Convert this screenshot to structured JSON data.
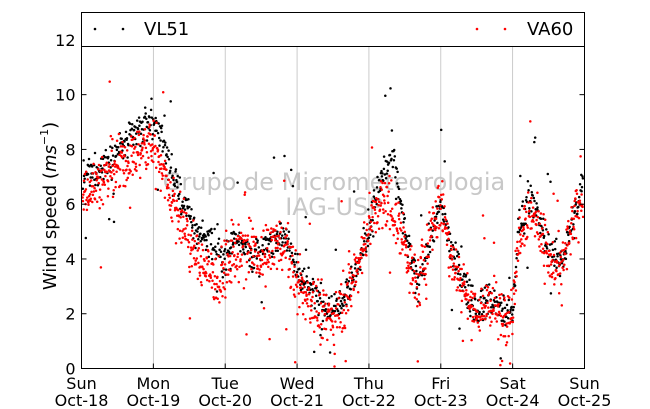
{
  "chart_data": {
    "type": "scatter",
    "title": "",
    "xlabel": "",
    "ylabel": "Wind speed (",
    "ylabel_unit": "ms",
    "ylabel_unit_exp": "−1",
    "ylabel_close": ")",
    "ylim": [
      0,
      13
    ],
    "yticks": [
      0,
      2,
      4,
      6,
      8,
      10,
      12
    ],
    "xlim": [
      "2015-10-18T00:00",
      "2015-10-25T00:00"
    ],
    "xticks": [
      {
        "day": "Sun",
        "date": "Oct-18"
      },
      {
        "day": "Mon",
        "date": "Oct-19"
      },
      {
        "day": "Tue",
        "date": "Oct-20"
      },
      {
        "day": "Wed",
        "date": "Oct-21"
      },
      {
        "day": "Thu",
        "date": "Oct-22"
      },
      {
        "day": "Fri",
        "date": "Oct-23"
      },
      {
        "day": "Sat",
        "date": "Oct-24"
      },
      {
        "day": "Sun",
        "date": "Oct-25"
      }
    ],
    "grid": "vertical at day boundaries",
    "legend_placement": "top, full width",
    "watermark": [
      "Grupo de Micrometeorologia",
      "IAG-USP"
    ],
    "series": [
      {
        "name": "VL51",
        "color": "#000000",
        "marker": "dot",
        "trend_by_hour": [
          [
            0,
            6.9
          ],
          [
            6,
            7.3
          ],
          [
            12,
            7.9
          ],
          [
            18,
            8.6
          ],
          [
            22,
            9.0
          ],
          [
            26,
            8.8
          ],
          [
            30,
            7.2
          ],
          [
            34,
            6.2
          ],
          [
            38,
            5.0
          ],
          [
            42,
            4.8
          ],
          [
            46,
            4.3
          ],
          [
            48,
            4.0
          ],
          [
            52,
            5.0
          ],
          [
            56,
            4.2
          ],
          [
            60,
            4.1
          ],
          [
            64,
            4.8
          ],
          [
            68,
            5.0
          ],
          [
            72,
            3.5
          ],
          [
            76,
            3.0
          ],
          [
            80,
            2.4
          ],
          [
            84,
            2.2
          ],
          [
            88,
            2.8
          ],
          [
            92,
            3.6
          ],
          [
            96,
            5.0
          ],
          [
            100,
            7.0
          ],
          [
            104,
            7.8
          ],
          [
            108,
            5.0
          ],
          [
            112,
            3.0
          ],
          [
            116,
            4.5
          ],
          [
            120,
            6.0
          ],
          [
            124,
            4.2
          ],
          [
            128,
            3.0
          ],
          [
            132,
            2.2
          ],
          [
            136,
            2.6
          ],
          [
            140,
            2.1
          ],
          [
            144,
            2.0
          ],
          [
            146,
            5.2
          ],
          [
            150,
            6.4
          ],
          [
            154,
            5.0
          ],
          [
            156,
            4.4
          ],
          [
            160,
            3.8
          ],
          [
            162,
            4.6
          ],
          [
            166,
            6.0
          ],
          [
            168,
            7.1
          ]
        ],
        "spread": 0.75
      },
      {
        "name": "VA60",
        "color": "#ff0000",
        "marker": "dot",
        "trend_by_hour": [
          [
            0,
            6.5
          ],
          [
            6,
            6.8
          ],
          [
            12,
            7.3
          ],
          [
            18,
            7.8
          ],
          [
            22,
            8.2
          ],
          [
            26,
            7.8
          ],
          [
            30,
            6.2
          ],
          [
            34,
            5.2
          ],
          [
            38,
            4.2
          ],
          [
            42,
            3.6
          ],
          [
            46,
            3.2
          ],
          [
            48,
            3.6
          ],
          [
            52,
            4.2
          ],
          [
            56,
            4.4
          ],
          [
            60,
            3.8
          ],
          [
            64,
            4.5
          ],
          [
            68,
            4.6
          ],
          [
            72,
            3.0
          ],
          [
            76,
            2.6
          ],
          [
            80,
            1.9
          ],
          [
            84,
            1.9
          ],
          [
            88,
            2.6
          ],
          [
            92,
            3.6
          ],
          [
            96,
            5.2
          ],
          [
            100,
            6.0
          ],
          [
            104,
            5.8
          ],
          [
            108,
            4.5
          ],
          [
            112,
            2.8
          ],
          [
            116,
            4.8
          ],
          [
            120,
            6.0
          ],
          [
            124,
            4.0
          ],
          [
            128,
            2.8
          ],
          [
            132,
            2.0
          ],
          [
            136,
            2.4
          ],
          [
            140,
            1.9
          ],
          [
            144,
            2.2
          ],
          [
            146,
            5.0
          ],
          [
            150,
            5.8
          ],
          [
            154,
            4.8
          ],
          [
            156,
            4.0
          ],
          [
            160,
            3.4
          ],
          [
            162,
            4.4
          ],
          [
            166,
            5.8
          ],
          [
            168,
            6.6
          ]
        ],
        "spread": 1.2
      }
    ]
  }
}
